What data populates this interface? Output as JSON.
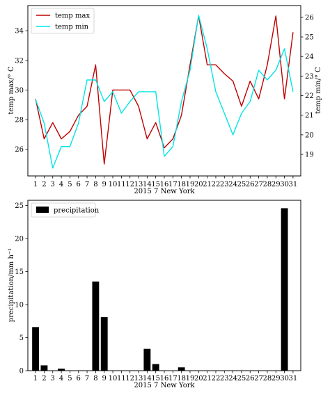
{
  "chart_data": [
    {
      "type": "line",
      "xlabel": "2015 7   New York",
      "ylabel": "temp max/° C",
      "y2label": "temp min/° C",
      "x": [
        1,
        2,
        3,
        4,
        5,
        6,
        7,
        8,
        9,
        10,
        11,
        12,
        13,
        14,
        15,
        16,
        17,
        18,
        19,
        20,
        21,
        22,
        23,
        24,
        25,
        26,
        27,
        28,
        29,
        30,
        31
      ],
      "x_ticks": [
        "1",
        "2",
        "3",
        "4",
        "5",
        "6",
        "7",
        "8",
        "9",
        "10",
        "11",
        "12",
        "13",
        "14",
        "15",
        "16",
        "17",
        "18",
        "19",
        "20",
        "21",
        "22",
        "23",
        "24",
        "25",
        "26",
        "27",
        "28",
        "29",
        "30",
        "31"
      ],
      "xlim": [
        0.1,
        31.9
      ],
      "ylim": [
        24.2,
        35.7
      ],
      "y_ticks": [
        "26",
        "28",
        "30",
        "32",
        "34"
      ],
      "y2lim": [
        17.9,
        26.6
      ],
      "y2_ticks": [
        "19",
        "20",
        "21",
        "22",
        "23",
        "24",
        "25",
        "26"
      ],
      "legend_position": "top-left",
      "grid": false,
      "series": [
        {
          "name": "temp max",
          "axis": "left",
          "color": "#c00000",
          "values": [
            29.4,
            26.7,
            27.8,
            26.7,
            27.2,
            28.3,
            28.9,
            31.7,
            25.0,
            30.0,
            30.0,
            30.0,
            28.9,
            26.7,
            27.8,
            26.1,
            26.7,
            28.3,
            31.7,
            35.0,
            31.7,
            31.7,
            31.1,
            30.6,
            28.9,
            30.6,
            29.4,
            31.7,
            35.0,
            29.4,
            33.9
          ]
        },
        {
          "name": "temp min",
          "axis": "right",
          "color": "#00e5e5",
          "values": [
            21.8,
            20.6,
            18.3,
            19.4,
            19.4,
            20.6,
            22.8,
            22.8,
            21.7,
            22.2,
            21.1,
            21.7,
            22.2,
            22.2,
            22.2,
            18.9,
            19.4,
            21.7,
            23.3,
            26.1,
            24.4,
            22.2,
            21.1,
            20.0,
            21.1,
            21.7,
            23.3,
            22.8,
            23.3,
            24.4,
            22.2
          ]
        }
      ]
    },
    {
      "type": "bar",
      "xlabel": "2015 7   New York",
      "ylabel": "precipitation/mm h⁻¹",
      "x": [
        1,
        2,
        3,
        4,
        5,
        6,
        7,
        8,
        9,
        10,
        11,
        12,
        13,
        14,
        15,
        16,
        17,
        18,
        19,
        20,
        21,
        22,
        23,
        24,
        25,
        26,
        27,
        28,
        29,
        30,
        31
      ],
      "x_ticks": [
        "1",
        "2",
        "3",
        "4",
        "5",
        "6",
        "7",
        "8",
        "9",
        "10",
        "11",
        "12",
        "13",
        "14",
        "15",
        "16",
        "17",
        "18",
        "19",
        "20",
        "21",
        "22",
        "23",
        "24",
        "25",
        "26",
        "27",
        "28",
        "29",
        "30",
        "31"
      ],
      "xlim": [
        0.1,
        31.9
      ],
      "ylim": [
        0,
        25.8
      ],
      "y_ticks": [
        "0",
        "5",
        "10",
        "15",
        "20",
        "25"
      ],
      "legend_position": "top-left",
      "grid": false,
      "series": [
        {
          "name": "precipitation",
          "color": "#000000",
          "values": [
            6.6,
            0.8,
            0,
            0.3,
            0,
            0,
            0,
            13.5,
            8.1,
            0,
            0,
            0,
            0,
            3.3,
            1.0,
            0,
            0,
            0.5,
            0,
            0,
            0,
            0,
            0,
            0,
            0,
            0,
            0,
            0,
            0,
            24.6,
            0
          ]
        }
      ]
    }
  ]
}
